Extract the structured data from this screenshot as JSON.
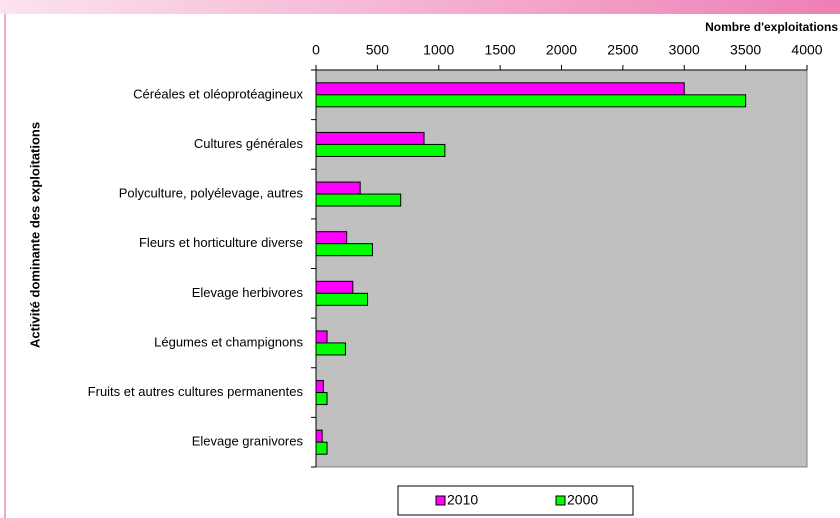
{
  "chart_data": {
    "type": "hbar",
    "x_label": "Nombre d'exploitations",
    "y_label": "Activité dominante des exploitations",
    "categories": [
      "Céréales et oléoprotéagineux",
      "Cultures générales",
      "Polyculture, polyélevage, autres",
      "Fleurs et horticulture diverse",
      "Elevage herbivores",
      "Légumes et champignons",
      "Fruits et autres cultures permanentes",
      "Elevage granivores"
    ],
    "series": [
      {
        "name": "2010",
        "color": "#ff00ff",
        "values": [
          3000,
          880,
          360,
          250,
          300,
          90,
          60,
          50
        ]
      },
      {
        "name": "2000",
        "color": "#00ff00",
        "values": [
          3500,
          1050,
          690,
          460,
          420,
          240,
          90,
          90
        ]
      }
    ],
    "xlim": [
      0,
      4000
    ],
    "xticks": [
      0,
      500,
      1000,
      1500,
      2000,
      2500,
      3000,
      3500,
      4000
    ],
    "plot_background": "#c0c0c0"
  }
}
